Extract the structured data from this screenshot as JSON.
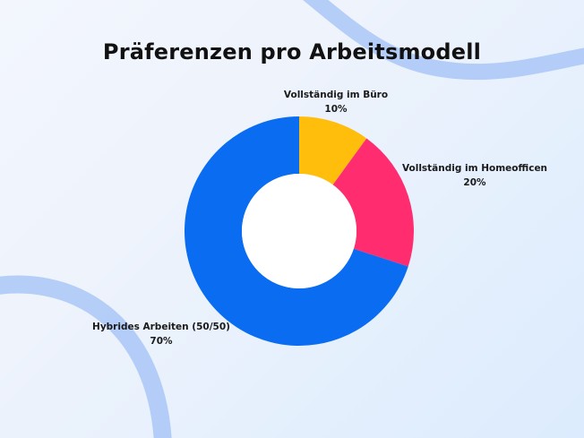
{
  "colors": {
    "office": "#FFBE0B",
    "home": "#FF2D6F",
    "hybrid": "#0A6CF0",
    "decor": "#A9C7F7"
  },
  "chart_data": {
    "type": "pie",
    "variant": "donut",
    "title": "Präferenzen pro Arbeitsmodell",
    "slices": [
      {
        "label": "Vollständig im Büro",
        "value": 10,
        "value_label": "10%",
        "color": "#FFBE0B"
      },
      {
        "label": "Vollständig im Homeofficen",
        "value": 20,
        "value_label": "20%",
        "color": "#FF2D6F"
      },
      {
        "label": "Hybrides Arbeiten (50/50)",
        "value": 70,
        "value_label": "70%",
        "color": "#0A6CF0"
      }
    ],
    "start_angle": "12 o'clock",
    "direction": "clockwise"
  }
}
